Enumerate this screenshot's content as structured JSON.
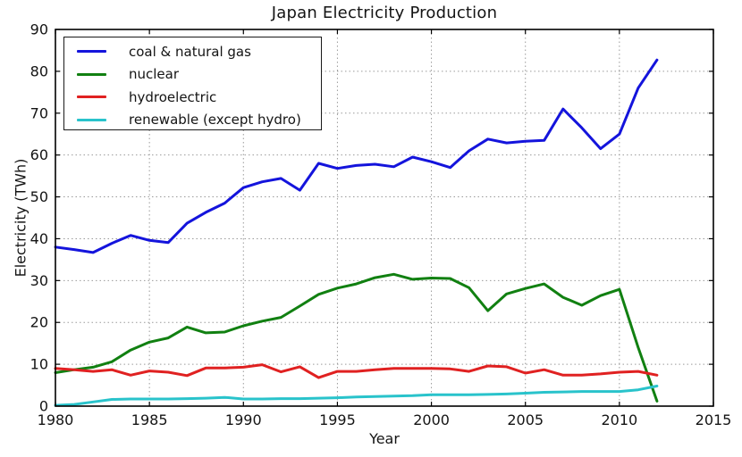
{
  "chart_data": {
    "type": "line",
    "title": "Japan Electricity Production",
    "xlabel": "Year",
    "ylabel": "Electricity (TWh)",
    "xlim": [
      1980,
      2015
    ],
    "ylim": [
      0,
      90
    ],
    "xticks": [
      1980,
      1985,
      1990,
      1995,
      2000,
      2005,
      2010,
      2015
    ],
    "yticks": [
      0,
      10,
      20,
      30,
      40,
      50,
      60,
      70,
      80,
      90
    ],
    "grid": "dotted",
    "grid_color": "#9a9a9a",
    "legend_position": "upper-left",
    "x": [
      1980,
      1981,
      1982,
      1983,
      1984,
      1985,
      1986,
      1987,
      1988,
      1989,
      1990,
      1991,
      1992,
      1993,
      1994,
      1995,
      1996,
      1997,
      1998,
      1999,
      2000,
      2001,
      2002,
      2003,
      2004,
      2005,
      2006,
      2007,
      2008,
      2009,
      2010,
      2011,
      2012
    ],
    "series": [
      {
        "id": "coal-natural-gas",
        "name": "coal & natural gas",
        "color": "#1414dc",
        "values": [
          38.0,
          37.4,
          36.7,
          38.9,
          40.8,
          39.6,
          39.1,
          43.7,
          46.3,
          48.5,
          52.2,
          53.6,
          54.4,
          51.6,
          58.0,
          56.8,
          57.5,
          57.8,
          57.2,
          59.5,
          58.4,
          57.0,
          61.0,
          63.8,
          62.9,
          63.3,
          63.5,
          71.0,
          66.5,
          61.5,
          65.0,
          76.0,
          82.7
        ]
      },
      {
        "id": "nuclear",
        "name": "nuclear",
        "color": "#118011",
        "values": [
          8.0,
          8.7,
          9.3,
          10.6,
          13.4,
          15.3,
          16.3,
          18.9,
          17.5,
          17.7,
          19.2,
          20.3,
          21.2,
          23.9,
          26.7,
          28.2,
          29.2,
          30.7,
          31.5,
          30.3,
          30.6,
          30.5,
          28.3,
          22.8,
          26.8,
          28.1,
          29.2,
          26.0,
          24.1,
          26.4,
          27.9,
          14.0,
          1.2
        ]
      },
      {
        "id": "hydroelectric",
        "name": "hydroelectric",
        "color": "#e02121",
        "values": [
          9.0,
          8.7,
          8.3,
          8.7,
          7.4,
          8.4,
          8.1,
          7.3,
          9.1,
          9.1,
          9.3,
          9.9,
          8.2,
          9.4,
          6.8,
          8.3,
          8.3,
          8.7,
          9.0,
          9.0,
          9.0,
          8.9,
          8.3,
          9.6,
          9.4,
          7.9,
          8.7,
          7.4,
          7.4,
          7.7,
          8.1,
          8.3,
          7.4
        ]
      },
      {
        "id": "renewable",
        "name": "renewable (except hydro)",
        "color": "#29c3cb",
        "values": [
          0.2,
          0.4,
          1.0,
          1.6,
          1.7,
          1.7,
          1.7,
          1.8,
          1.9,
          2.1,
          1.7,
          1.7,
          1.8,
          1.8,
          1.9,
          2.0,
          2.2,
          2.3,
          2.4,
          2.5,
          2.7,
          2.7,
          2.7,
          2.8,
          2.9,
          3.1,
          3.3,
          3.4,
          3.5,
          3.5,
          3.5,
          3.9,
          4.8
        ]
      }
    ]
  }
}
